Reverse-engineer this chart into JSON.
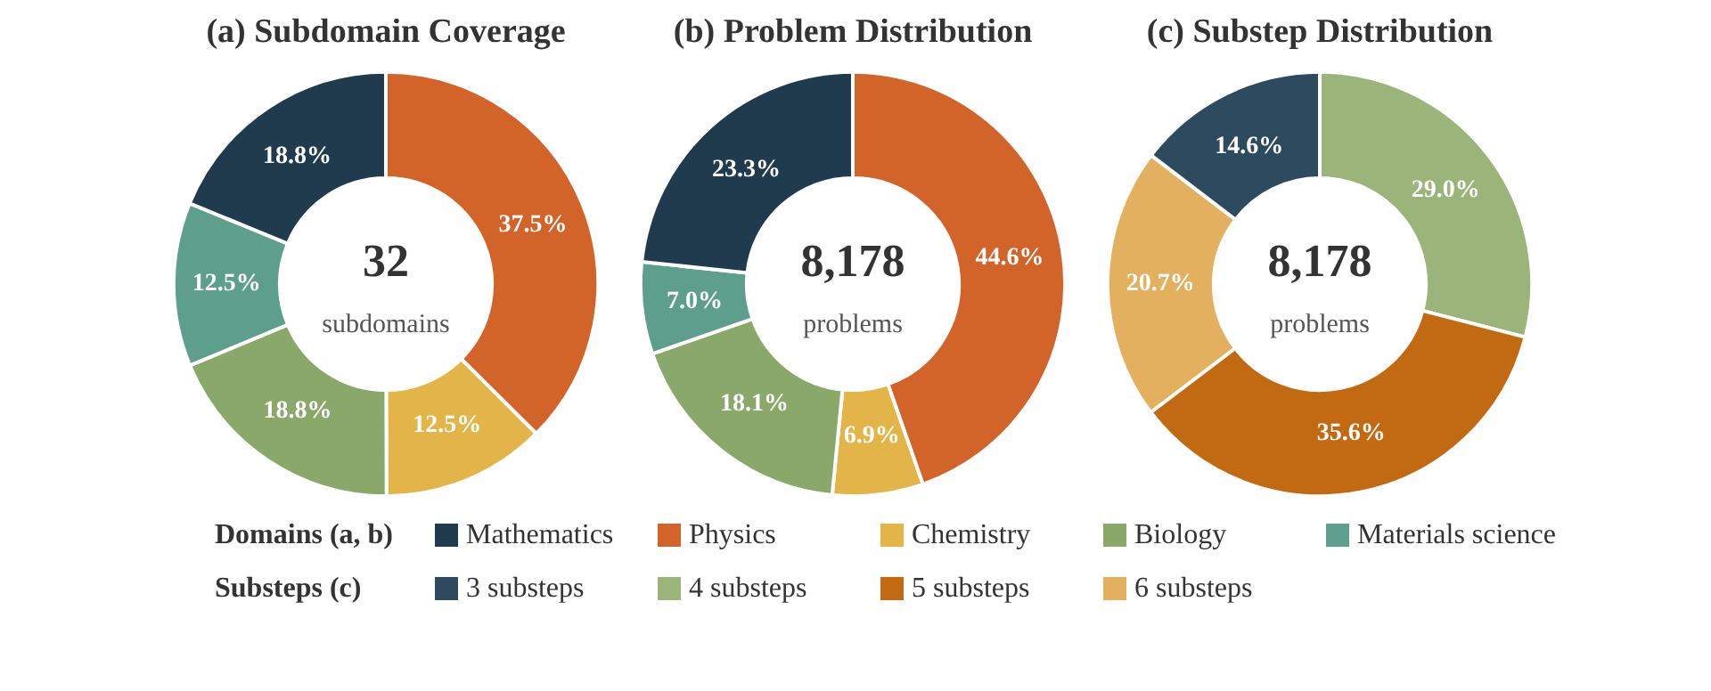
{
  "chart_data": [
    {
      "type": "donut",
      "title": "(a) Subdomain Coverage",
      "categories": [
        "Physics",
        "Chemistry",
        "Biology",
        "Materials science",
        "Mathematics"
      ],
      "values": [
        37.5,
        12.5,
        18.8,
        12.5,
        18.8
      ],
      "colors": [
        "#d2642a",
        "#e3b448",
        "#8aa86a",
        "#5e9e8c",
        "#1f3b4d"
      ],
      "value_labels": [
        "37.5%",
        "12.5%",
        "18.8%",
        "12.5%",
        "18.8%"
      ],
      "annotations": [
        "32",
        "subdomains"
      ],
      "legend": "bottom",
      "legend_title": "Domains (a, b)"
    },
    {
      "type": "donut",
      "title": "(b) Problem Distribution",
      "categories": [
        null,
        null,
        null,
        null,
        null
      ],
      "values": [
        44.6,
        6.9,
        18.1,
        7.0,
        23.3
      ],
      "colors": [
        "#d2642a",
        "#e3b448",
        "#8aa86a",
        "#5e9e8c",
        "#1f3b4d"
      ],
      "value_labels": [
        "44.6%",
        "6.9%",
        "18.1%",
        "7.0%",
        "23.3%"
      ],
      "annotations": [
        "8,178",
        "problems"
      ]
    },
    {
      "type": "donut",
      "title": "(c) Substep Distribution",
      "categories": [
        "4 substeps",
        "5 substeps",
        "6 substeps",
        "3 substeps"
      ],
      "values": [
        29.0,
        35.6,
        20.7,
        14.6
      ],
      "colors": [
        "#9bb47a",
        "#c26a12",
        "#e2b05e",
        "#2d4a5e"
      ],
      "value_labels": [
        "29.0%",
        "35.6%",
        "20.7%",
        "14.6%"
      ],
      "annotations": [
        "8,178",
        "problems"
      ],
      "legend": "bottom",
      "legend_title": "Substeps (c)"
    }
  ]
}
